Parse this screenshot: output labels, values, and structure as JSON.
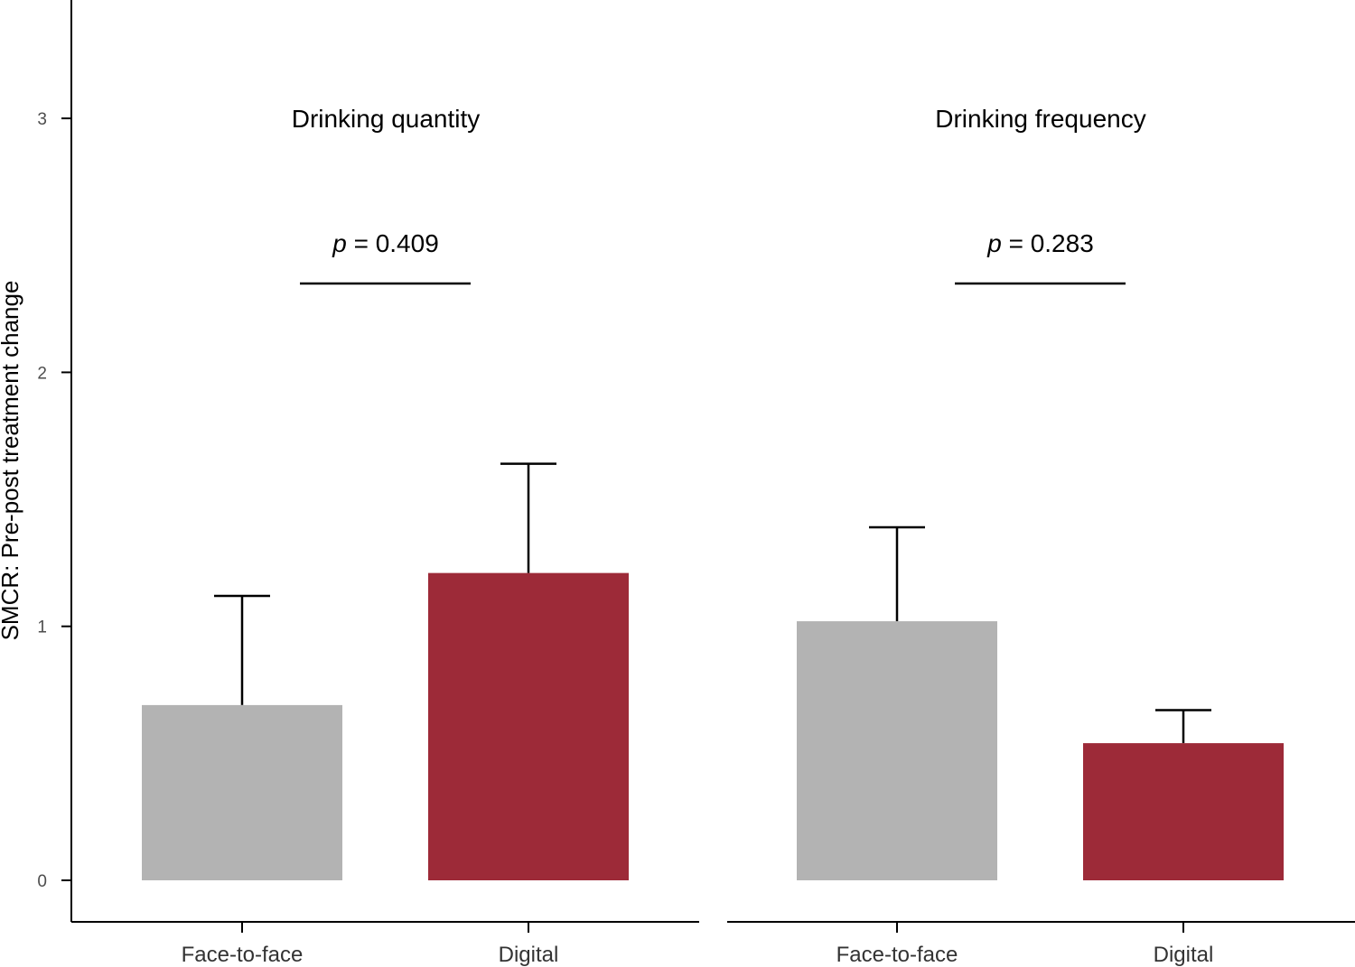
{
  "chart_data": {
    "type": "bar",
    "ylabel": "SMCR: Pre-post treatment change",
    "ylim": [
      -0.165,
      3.46
    ],
    "yticks": [
      0,
      1,
      2,
      3
    ],
    "categories": [
      "Face-to-face",
      "Digital"
    ],
    "colors": {
      "Face-to-face": "#b3b3b3",
      "Digital": "#9d2a38"
    },
    "panels": [
      {
        "title": "Drinking quantity",
        "p_prefix": "p",
        "p_value": " = 0.409",
        "values": [
          0.69,
          1.21
        ],
        "error_upper": [
          1.12,
          1.64
        ]
      },
      {
        "title": "Drinking frequency",
        "p_prefix": "p",
        "p_value": " = 0.283",
        "values": [
          1.02,
          0.54
        ],
        "error_upper": [
          1.39,
          0.67
        ]
      }
    ]
  }
}
